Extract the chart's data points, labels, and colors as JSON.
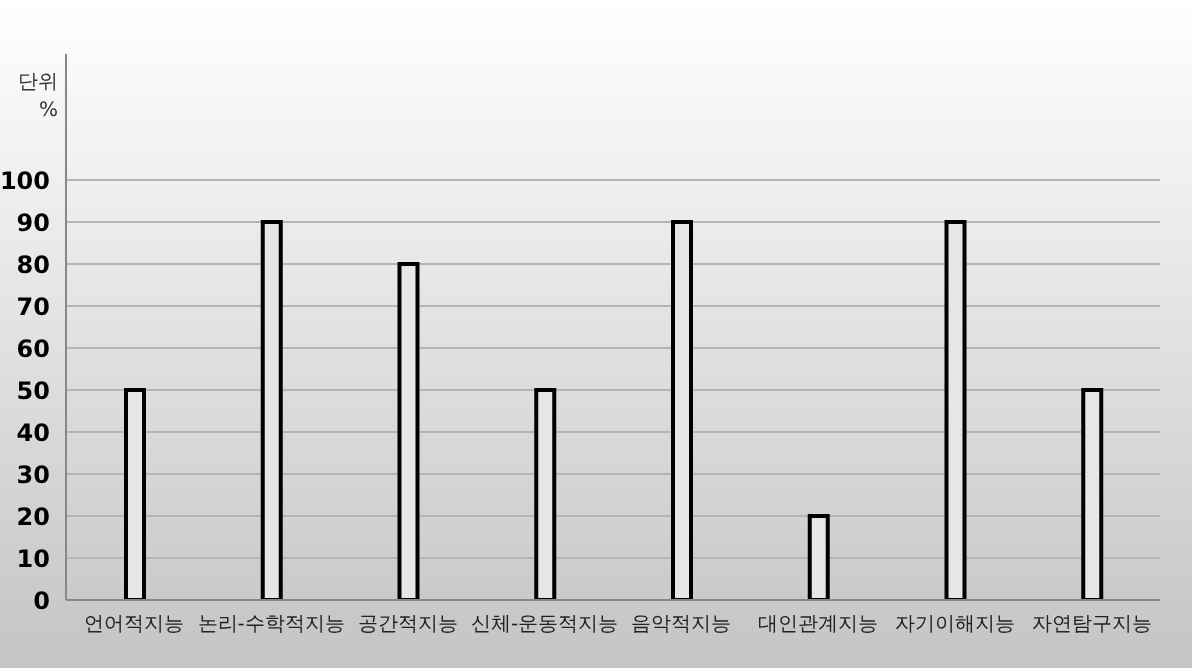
{
  "chart_data": {
    "type": "bar",
    "ylabel": "단위\n%",
    "categories": [
      "언어적지능",
      "논리-수학적지능",
      "공간적지능",
      "신체-운동적지능",
      "음악적지능",
      "대인관계지능",
      "자기이해지능",
      "자연탐구지능"
    ],
    "values": [
      50,
      90,
      80,
      50,
      90,
      20,
      90,
      50
    ],
    "color": "#e6e6e6",
    "ylim": [
      0,
      130
    ],
    "yticks": [
      0,
      10,
      20,
      30,
      40,
      50,
      60,
      70,
      80,
      90,
      100
    ],
    "grid": "y"
  }
}
